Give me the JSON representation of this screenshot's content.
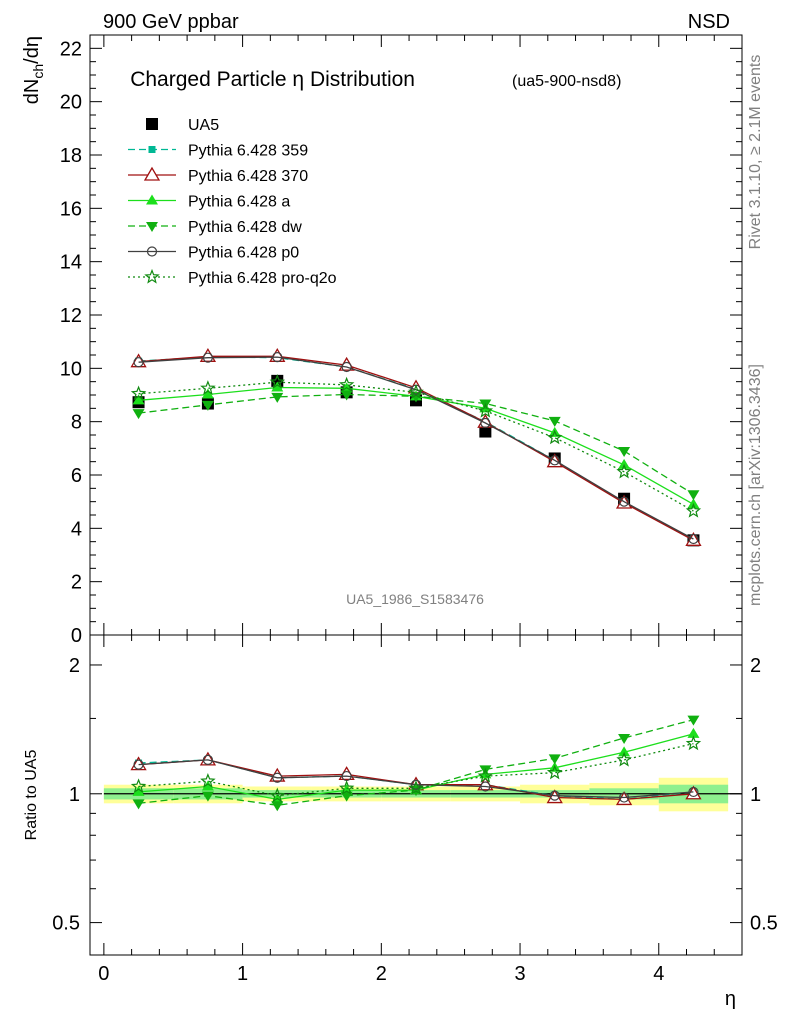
{
  "header": {
    "left": "900 GeV ppbar",
    "right": "NSD"
  },
  "side_labels": {
    "rivet": "Rivet 3.1.10, ≥ 2.1M events",
    "mcplots": "mcplots.cern.ch [arXiv:1306.3436]"
  },
  "chart_data": [
    {
      "type": "line",
      "title": "Charged Particle η Distribution",
      "title_suffix": "(ua5-900-nsd8)",
      "ylabel": "dN_ch/dη",
      "watermark": "UA5_1986_S1583476",
      "xlim": [
        -0.1,
        4.6
      ],
      "ylim": [
        0,
        22.5
      ],
      "yticks": [
        0,
        2,
        4,
        6,
        8,
        10,
        12,
        14,
        16,
        18,
        20,
        22
      ],
      "yticklabels": [
        "0",
        "2",
        "4",
        "6",
        "8",
        "10",
        "12",
        "14",
        "16",
        "18",
        "20",
        "22"
      ],
      "x": [
        0.25,
        0.75,
        1.25,
        1.75,
        2.25,
        2.75,
        3.25,
        3.75,
        4.25
      ],
      "legend_position": "top-left",
      "series": [
        {
          "name": "UA5",
          "color": "#000000",
          "marker": "square-filled",
          "line": "none",
          "values": [
            8.73,
            8.68,
            9.53,
            9.1,
            8.8,
            7.63,
            6.62,
            5.11,
            3.55
          ]
        },
        {
          "name": "Pythia 6.428 359",
          "color": "#00b894",
          "marker": "square-small-filled",
          "line": "dashed",
          "values": [
            10.27,
            10.43,
            10.4,
            10.05,
            9.22,
            8.0,
            6.55,
            4.97,
            3.58
          ]
        },
        {
          "name": "Pythia 6.428 370",
          "color": "#a01010",
          "marker": "triangle-open",
          "line": "solid",
          "values": [
            10.25,
            10.45,
            10.45,
            10.12,
            9.27,
            7.98,
            6.5,
            4.95,
            3.55
          ]
        },
        {
          "name": "Pythia 6.428 a",
          "color": "#1cdf1c",
          "marker": "triangle-filled",
          "line": "solid",
          "values": [
            8.8,
            9.02,
            9.28,
            9.25,
            8.95,
            8.5,
            7.58,
            6.38,
            4.9
          ]
        },
        {
          "name": "Pythia 6.428 dw",
          "color": "#10b010",
          "marker": "triangle-down-filled",
          "line": "dashed",
          "values": [
            8.32,
            8.63,
            8.93,
            9.02,
            8.95,
            8.68,
            8.03,
            6.9,
            5.28
          ]
        },
        {
          "name": "Pythia 6.428 p0",
          "color": "#404040",
          "marker": "circle-open",
          "line": "solid",
          "values": [
            10.23,
            10.4,
            10.42,
            10.05,
            9.2,
            7.95,
            6.55,
            5.0,
            3.6
          ]
        },
        {
          "name": "Pythia 6.428 pro-q2o",
          "color": "#108a10",
          "marker": "star-open",
          "line": "dotted",
          "values": [
            9.05,
            9.25,
            9.48,
            9.38,
            9.1,
            8.4,
            7.4,
            6.12,
            4.65
          ]
        }
      ]
    },
    {
      "type": "line",
      "ylabel": "Ratio to UA5",
      "xlabel": "η",
      "xlim": [
        -0.1,
        4.6
      ],
      "ylim": [
        0.42,
        2.35
      ],
      "yscale": "log",
      "yticks": [
        0.5,
        1,
        2
      ],
      "yticklabels": [
        "0.5",
        "1",
        "2"
      ],
      "xticks": [
        0,
        1,
        2,
        3,
        4
      ],
      "xticklabels": [
        "0",
        "1",
        "2",
        "3",
        "4"
      ],
      "x": [
        0.25,
        0.75,
        1.25,
        1.75,
        2.25,
        2.75,
        3.25,
        3.75,
        4.25
      ],
      "reference_line": 1,
      "bands": {
        "x_edges": [
          0.0,
          0.5,
          1.0,
          1.5,
          2.0,
          2.5,
          3.0,
          3.5,
          4.0,
          4.5
        ],
        "stat_color": "#8ef08e",
        "total_color": "#ffff99",
        "stat_rel": [
          0.03,
          0.03,
          0.02,
          0.02,
          0.02,
          0.02,
          0.02,
          0.03,
          0.05
        ],
        "total_rel": [
          0.05,
          0.05,
          0.04,
          0.04,
          0.04,
          0.04,
          0.05,
          0.06,
          0.09
        ]
      },
      "series": [
        {
          "name": "Pythia 6.428 359",
          "values": [
            1.18,
            1.2,
            1.09,
            1.1,
            1.05,
            1.05,
            0.99,
            0.97,
            1.01
          ]
        },
        {
          "name": "Pythia 6.428 370",
          "values": [
            1.17,
            1.2,
            1.1,
            1.11,
            1.05,
            1.05,
            0.98,
            0.97,
            1.0
          ]
        },
        {
          "name": "Pythia 6.428 a",
          "values": [
            1.01,
            1.04,
            0.97,
            1.02,
            1.02,
            1.11,
            1.15,
            1.25,
            1.38
          ]
        },
        {
          "name": "Pythia 6.428 dw",
          "values": [
            0.95,
            0.99,
            0.94,
            0.99,
            1.02,
            1.14,
            1.21,
            1.35,
            1.49
          ]
        },
        {
          "name": "Pythia 6.428 p0",
          "values": [
            1.17,
            1.2,
            1.09,
            1.1,
            1.05,
            1.04,
            0.99,
            0.98,
            1.01
          ]
        },
        {
          "name": "Pythia 6.428 pro-q2o",
          "values": [
            1.04,
            1.07,
            0.99,
            1.03,
            1.03,
            1.1,
            1.12,
            1.2,
            1.31
          ]
        }
      ]
    }
  ]
}
